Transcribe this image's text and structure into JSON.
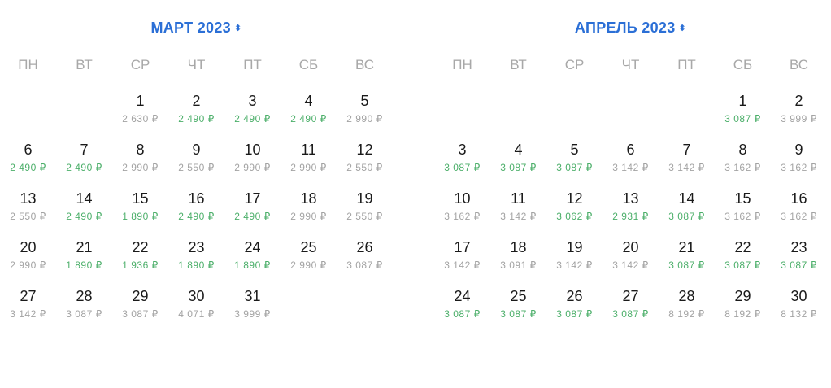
{
  "currency": "₽",
  "colors": {
    "accent": "#2b6fd6",
    "cheap_price": "#4caf6a",
    "regular_price": "#a3a3a3"
  },
  "icons": {
    "month_toggle": "up-down-chevron-icon"
  },
  "weekdays": [
    "ПН",
    "ВТ",
    "СР",
    "ЧТ",
    "ПТ",
    "СБ",
    "ВС"
  ],
  "months": [
    {
      "title": "МАРТ 2023",
      "weeks": [
        [
          null,
          null,
          {
            "day": "1",
            "price": "2 630",
            "cheap": false
          },
          {
            "day": "2",
            "price": "2 490",
            "cheap": true
          },
          {
            "day": "3",
            "price": "2 490",
            "cheap": true
          },
          {
            "day": "4",
            "price": "2 490",
            "cheap": true
          },
          {
            "day": "5",
            "price": "2 990",
            "cheap": false
          }
        ],
        [
          {
            "day": "6",
            "price": "2 490",
            "cheap": true
          },
          {
            "day": "7",
            "price": "2 490",
            "cheap": true
          },
          {
            "day": "8",
            "price": "2 990",
            "cheap": false
          },
          {
            "day": "9",
            "price": "2 550",
            "cheap": false
          },
          {
            "day": "10",
            "price": "2 990",
            "cheap": false
          },
          {
            "day": "11",
            "price": "2 990",
            "cheap": false
          },
          {
            "day": "12",
            "price": "2 550",
            "cheap": false
          }
        ],
        [
          {
            "day": "13",
            "price": "2 550",
            "cheap": false
          },
          {
            "day": "14",
            "price": "2 490",
            "cheap": true
          },
          {
            "day": "15",
            "price": "1 890",
            "cheap": true
          },
          {
            "day": "16",
            "price": "2 490",
            "cheap": true
          },
          {
            "day": "17",
            "price": "2 490",
            "cheap": true
          },
          {
            "day": "18",
            "price": "2 990",
            "cheap": false
          },
          {
            "day": "19",
            "price": "2 550",
            "cheap": false
          }
        ],
        [
          {
            "day": "20",
            "price": "2 990",
            "cheap": false
          },
          {
            "day": "21",
            "price": "1 890",
            "cheap": true
          },
          {
            "day": "22",
            "price": "1 936",
            "cheap": true
          },
          {
            "day": "23",
            "price": "1 890",
            "cheap": true
          },
          {
            "day": "24",
            "price": "1 890",
            "cheap": true
          },
          {
            "day": "25",
            "price": "2 990",
            "cheap": false
          },
          {
            "day": "26",
            "price": "3 087",
            "cheap": false
          }
        ],
        [
          {
            "day": "27",
            "price": "3 142",
            "cheap": false
          },
          {
            "day": "28",
            "price": "3 087",
            "cheap": false
          },
          {
            "day": "29",
            "price": "3 087",
            "cheap": false
          },
          {
            "day": "30",
            "price": "4 071",
            "cheap": false
          },
          {
            "day": "31",
            "price": "3 999",
            "cheap": false
          },
          null,
          null
        ]
      ]
    },
    {
      "title": "АПРЕЛЬ 2023",
      "weeks": [
        [
          null,
          null,
          null,
          null,
          null,
          {
            "day": "1",
            "price": "3 087",
            "cheap": true
          },
          {
            "day": "2",
            "price": "3 999",
            "cheap": false
          }
        ],
        [
          {
            "day": "3",
            "price": "3 087",
            "cheap": true
          },
          {
            "day": "4",
            "price": "3 087",
            "cheap": true
          },
          {
            "day": "5",
            "price": "3 087",
            "cheap": true
          },
          {
            "day": "6",
            "price": "3 142",
            "cheap": false
          },
          {
            "day": "7",
            "price": "3 142",
            "cheap": false
          },
          {
            "day": "8",
            "price": "3 162",
            "cheap": false
          },
          {
            "day": "9",
            "price": "3 162",
            "cheap": false
          }
        ],
        [
          {
            "day": "10",
            "price": "3 162",
            "cheap": false
          },
          {
            "day": "11",
            "price": "3 142",
            "cheap": false
          },
          {
            "day": "12",
            "price": "3 062",
            "cheap": true
          },
          {
            "day": "13",
            "price": "2 931",
            "cheap": true
          },
          {
            "day": "14",
            "price": "3 087",
            "cheap": true
          },
          {
            "day": "15",
            "price": "3 162",
            "cheap": false
          },
          {
            "day": "16",
            "price": "3 162",
            "cheap": false
          }
        ],
        [
          {
            "day": "17",
            "price": "3 142",
            "cheap": false
          },
          {
            "day": "18",
            "price": "3 091",
            "cheap": false
          },
          {
            "day": "19",
            "price": "3 142",
            "cheap": false
          },
          {
            "day": "20",
            "price": "3 142",
            "cheap": false
          },
          {
            "day": "21",
            "price": "3 087",
            "cheap": true
          },
          {
            "day": "22",
            "price": "3 087",
            "cheap": true
          },
          {
            "day": "23",
            "price": "3 087",
            "cheap": true
          }
        ],
        [
          {
            "day": "24",
            "price": "3 087",
            "cheap": true
          },
          {
            "day": "25",
            "price": "3 087",
            "cheap": true
          },
          {
            "day": "26",
            "price": "3 087",
            "cheap": true
          },
          {
            "day": "27",
            "price": "3 087",
            "cheap": true
          },
          {
            "day": "28",
            "price": "8 192",
            "cheap": false
          },
          {
            "day": "29",
            "price": "8 192",
            "cheap": false
          },
          {
            "day": "30",
            "price": "8 132",
            "cheap": false
          }
        ]
      ]
    }
  ]
}
